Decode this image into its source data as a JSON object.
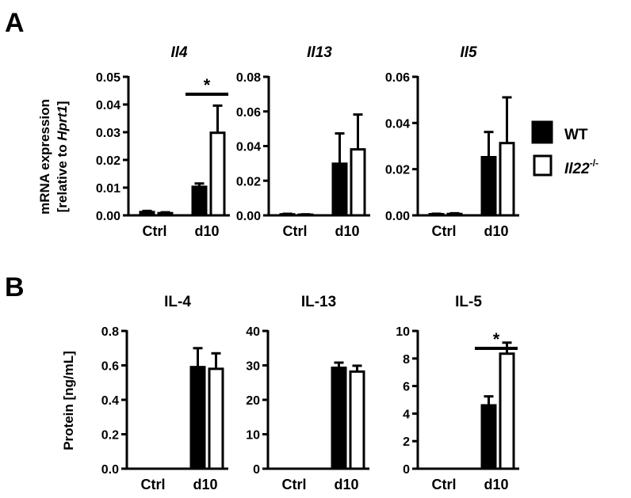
{
  "panel_labels": {
    "a": "A",
    "b": "B"
  },
  "y_labels": {
    "mrna_line1": "mRNA expression",
    "mrna_line2_prefix": "[relative to ",
    "mrna_line2_gene": "Hprt1",
    "mrna_line2_suffix": "]",
    "protein": "Protein [ng/mL]"
  },
  "legend": {
    "wt": "WT",
    "ko_gene": "Il22",
    "ko_sup": "-/-"
  },
  "colors": {
    "wt": "#000000",
    "ko": "#ffffff",
    "ink": "#000000"
  },
  "chart_data": [
    {
      "type": "bar",
      "title": "Il4",
      "title_italic": true,
      "row": "A",
      "categories": [
        "Ctrl",
        "d10"
      ],
      "series": [
        {
          "name": "WT",
          "values": [
            0.0012,
            0.0103
          ],
          "errors": [
            0.0004,
            0.0012
          ]
        },
        {
          "name": "Il22-/-",
          "values": [
            0.0008,
            0.0298
          ],
          "errors": [
            0.0003,
            0.0098
          ]
        }
      ],
      "ylim": [
        0,
        0.05
      ],
      "yticks": [
        "0.00",
        "0.01",
        "0.02",
        "0.03",
        "0.04",
        "0.05"
      ],
      "significance": {
        "category": "d10",
        "label": "*"
      }
    },
    {
      "type": "bar",
      "title": "Il13",
      "title_italic": true,
      "row": "A",
      "categories": [
        "Ctrl",
        "d10"
      ],
      "series": [
        {
          "name": "WT",
          "values": [
            0.0006,
            0.0298
          ],
          "errors": [
            0.0003,
            0.0175
          ]
        },
        {
          "name": "Il22-/-",
          "values": [
            0.0004,
            0.0381
          ],
          "errors": [
            0.0002,
            0.0201
          ]
        }
      ],
      "ylim": [
        0,
        0.08
      ],
      "yticks": [
        "0.00",
        "0.02",
        "0.04",
        "0.06",
        "0.08"
      ]
    },
    {
      "type": "bar",
      "title": "Il5",
      "title_italic": true,
      "row": "A",
      "categories": [
        "Ctrl",
        "d10"
      ],
      "series": [
        {
          "name": "WT",
          "values": [
            0.0005,
            0.0252
          ],
          "errors": [
            0.0002,
            0.0109
          ]
        },
        {
          "name": "Il22-/-",
          "values": [
            0.0006,
            0.0313
          ],
          "errors": [
            0.0003,
            0.0198
          ]
        }
      ],
      "ylim": [
        0,
        0.06
      ],
      "yticks": [
        "0.00",
        "0.02",
        "0.04",
        "0.06"
      ]
    },
    {
      "type": "bar",
      "title": "IL-4",
      "title_italic": false,
      "row": "B",
      "categories": [
        "Ctrl",
        "d10"
      ],
      "series": [
        {
          "name": "WT",
          "values": [
            0,
            0.59
          ],
          "errors": [
            0,
            0.11
          ]
        },
        {
          "name": "Il22-/-",
          "values": [
            0,
            0.58
          ],
          "errors": [
            0,
            0.09
          ]
        }
      ],
      "ylim": [
        0,
        0.8
      ],
      "yticks": [
        "0.0",
        "0.2",
        "0.4",
        "0.6",
        "0.8"
      ]
    },
    {
      "type": "bar",
      "title": "IL-13",
      "title_italic": false,
      "row": "B",
      "categories": [
        "Ctrl",
        "d10"
      ],
      "series": [
        {
          "name": "WT",
          "values": [
            0,
            29.3
          ],
          "errors": [
            0,
            1.5
          ]
        },
        {
          "name": "Il22-/-",
          "values": [
            0,
            28.2
          ],
          "errors": [
            0,
            1.7
          ]
        }
      ],
      "ylim": [
        0,
        40
      ],
      "yticks": [
        "0",
        "10",
        "20",
        "30",
        "40"
      ]
    },
    {
      "type": "bar",
      "title": "IL-5",
      "title_italic": false,
      "row": "B",
      "categories": [
        "Ctrl",
        "d10"
      ],
      "series": [
        {
          "name": "WT",
          "values": [
            0,
            4.6
          ],
          "errors": [
            0,
            0.65
          ]
        },
        {
          "name": "Il22-/-",
          "values": [
            0,
            8.35
          ],
          "errors": [
            0,
            0.8
          ]
        }
      ],
      "ylim": [
        0,
        10
      ],
      "yticks": [
        "0",
        "2",
        "4",
        "6",
        "8",
        "10"
      ],
      "significance": {
        "category": "d10",
        "label": "*"
      }
    }
  ]
}
